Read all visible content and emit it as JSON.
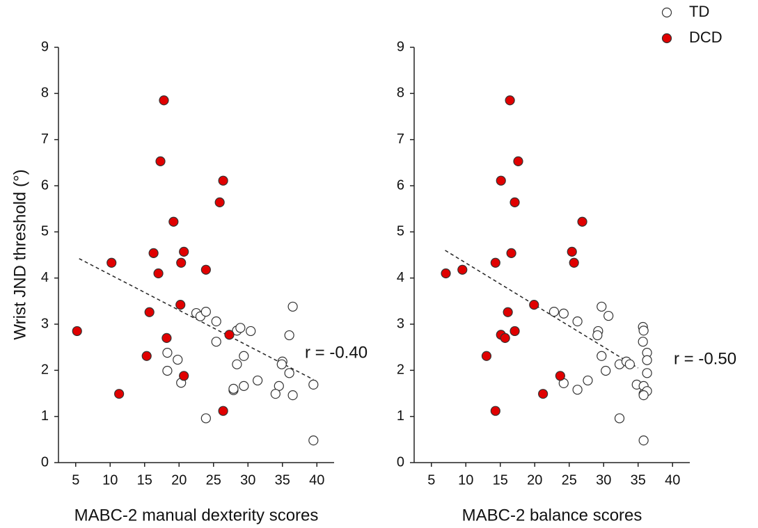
{
  "chart_data": [
    {
      "type": "scatter",
      "xlabel": "MABC-2 manual dexterity scores",
      "ylabel": "Wrist JND threshold (°)",
      "xlim": [
        2.5,
        42.5
      ],
      "ylim": [
        0,
        9
      ],
      "xticks": [
        5,
        10,
        15,
        20,
        25,
        30,
        35,
        40
      ],
      "yticks": [
        0,
        1,
        2,
        3,
        4,
        5,
        6,
        7,
        8,
        9
      ],
      "annotation": "r = -0.40",
      "trend_line": {
        "x": [
          5.5,
          39.5
        ],
        "y": [
          4.42,
          1.8
        ]
      },
      "series": [
        {
          "name": "TD",
          "color": "#ffffff",
          "x": [
            22.5,
            23.1,
            23.9,
            25.4,
            25.4,
            28.4,
            28.9,
            30.4,
            36.5,
            36.0,
            18.3,
            19.8,
            18.3,
            20.3,
            28.4,
            29.4,
            35.0,
            34.9,
            36.0,
            31.4,
            29.4,
            27.9,
            27.9,
            34.5,
            34.0,
            36.5,
            39.5,
            23.9,
            39.5
          ],
          "y": [
            3.24,
            3.17,
            3.27,
            3.06,
            2.62,
            2.86,
            2.92,
            2.85,
            3.38,
            2.76,
            2.38,
            2.23,
            1.99,
            1.73,
            2.13,
            2.31,
            2.19,
            2.13,
            1.94,
            1.78,
            1.66,
            1.57,
            1.6,
            1.66,
            1.49,
            1.46,
            1.69,
            0.96,
            0.48
          ]
        },
        {
          "name": "DCD",
          "color": "#e00000",
          "x": [
            5.2,
            10.2,
            11.3,
            17.8,
            17.3,
            19.2,
            26.4,
            25.9,
            16.3,
            17.0,
            20.7,
            20.3,
            23.9,
            20.2,
            15.7,
            18.2,
            15.3,
            20.7,
            27.3,
            26.4
          ],
          "y": [
            2.85,
            4.33,
            1.49,
            7.85,
            6.53,
            5.22,
            6.11,
            5.64,
            4.54,
            4.1,
            4.57,
            4.33,
            4.18,
            3.42,
            3.26,
            2.7,
            2.31,
            1.88,
            2.77,
            1.12
          ]
        }
      ]
    },
    {
      "type": "scatter",
      "xlabel": "MABC-2 balance scores",
      "xlim": [
        2.5,
        42.5
      ],
      "ylim": [
        0,
        9
      ],
      "xticks": [
        5,
        10,
        15,
        20,
        25,
        30,
        35,
        40
      ],
      "yticks": [
        0,
        1,
        2,
        3,
        4,
        5,
        6,
        7,
        8,
        9
      ],
      "annotation": "r = -0.50",
      "trend_line": {
        "x": [
          7,
          35
        ],
        "y": [
          4.6,
          2.05
        ]
      },
      "legend": "top-right",
      "series": [
        {
          "name": "TD",
          "color": "#ffffff",
          "x": [
            22.8,
            24.2,
            26.2,
            29.7,
            30.7,
            29.2,
            29.1,
            35.7,
            35.8,
            35.7,
            36.3,
            36.3,
            29.7,
            32.3,
            33.3,
            33.8,
            36.3,
            30.3,
            24.2,
            27.7,
            26.2,
            34.8,
            35.8,
            35.8,
            36.3,
            35.8,
            32.3,
            35.8
          ],
          "y": [
            3.27,
            3.23,
            3.06,
            3.38,
            3.18,
            2.85,
            2.76,
            2.94,
            2.86,
            2.62,
            2.38,
            2.22,
            2.31,
            2.13,
            2.19,
            2.13,
            1.94,
            1.99,
            1.72,
            1.78,
            1.58,
            1.69,
            1.66,
            1.49,
            1.55,
            1.46,
            0.96,
            0.48
          ]
        },
        {
          "name": "DCD",
          "color": "#e00000",
          "x": [
            16.4,
            17.6,
            15.1,
            17.1,
            26.9,
            16.6,
            25.4,
            25.7,
            14.3,
            7.1,
            9.5,
            19.9,
            16.1,
            17.1,
            15.1,
            15.7,
            13.0,
            23.7,
            21.2,
            14.3
          ],
          "y": [
            7.85,
            6.53,
            6.11,
            5.64,
            5.22,
            4.54,
            4.57,
            4.33,
            4.33,
            4.1,
            4.18,
            3.42,
            3.26,
            2.85,
            2.77,
            2.7,
            2.31,
            1.88,
            1.49,
            1.12
          ]
        }
      ]
    }
  ]
}
